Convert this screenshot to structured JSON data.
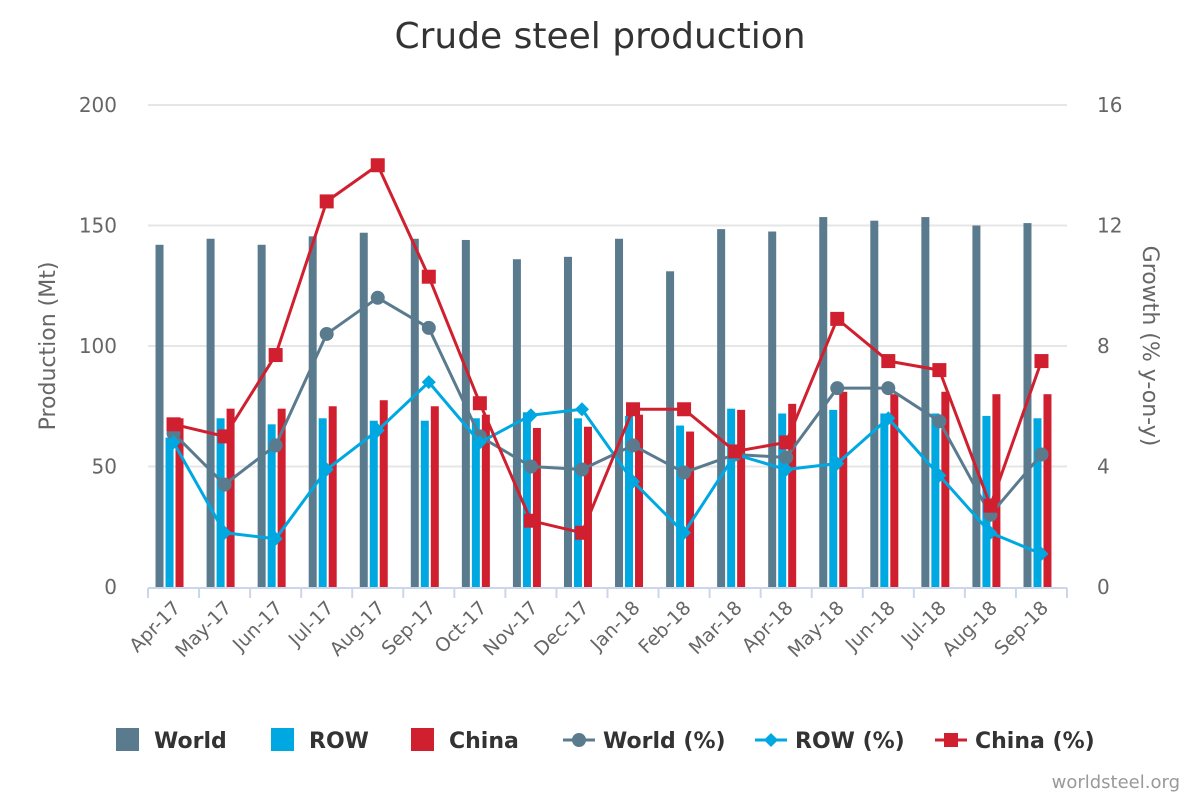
{
  "chart_data": {
    "type": "bar",
    "title": "Crude steel production",
    "ylabel": "Production (Mt)",
    "y2label": "Growth (% y-on-y)",
    "ylim": [
      0,
      200
    ],
    "y2lim": [
      0,
      16
    ],
    "yticks": [
      "0",
      "50",
      "100",
      "150",
      "200"
    ],
    "y2ticks": [
      "0",
      "4",
      "8",
      "12",
      "16"
    ],
    "categories": [
      "Apr-17",
      "May-17",
      "Jun-17",
      "Jul-17",
      "Aug-17",
      "Sep-17",
      "Oct-17",
      "Nov-17",
      "Dec-17",
      "Jan-18",
      "Feb-18",
      "Mar-18",
      "Apr-18",
      "May-18",
      "Jun-18",
      "Jul-18",
      "Aug-18",
      "Sep-18"
    ],
    "series": [
      {
        "name": "World",
        "kind": "bar",
        "axis": "left",
        "color": "#5a7b8e",
        "values": [
          142,
          144.5,
          142,
          145.5,
          147,
          144.5,
          144,
          136,
          137,
          144.5,
          131,
          148.5,
          147.5,
          153.5,
          152,
          153.5,
          150,
          151
        ]
      },
      {
        "name": "ROW",
        "kind": "bar",
        "axis": "left",
        "color": "#00a8e2",
        "values": [
          62,
          70,
          67.5,
          70,
          69,
          69,
          70,
          72.5,
          70,
          71,
          67,
          74,
          72,
          73.5,
          72,
          72,
          71,
          70
        ]
      },
      {
        "name": "China",
        "kind": "bar",
        "axis": "left",
        "color": "#d0202f",
        "values": [
          70,
          74,
          74,
          75,
          77.5,
          75,
          71.5,
          66,
          66.5,
          71.5,
          64.5,
          73.5,
          76,
          81,
          80,
          81,
          80,
          80
        ]
      },
      {
        "name": "World (%)",
        "kind": "line",
        "marker": "circle",
        "axis": "right",
        "color": "#5a7b8e",
        "values": [
          5.1,
          3.4,
          4.7,
          8.4,
          9.6,
          8.6,
          5.0,
          4.0,
          3.9,
          4.7,
          3.8,
          4.4,
          4.3,
          6.6,
          6.6,
          5.5,
          2.4,
          4.4
        ]
      },
      {
        "name": "ROW (%)",
        "kind": "line",
        "marker": "diamond",
        "axis": "right",
        "color": "#00a8e2",
        "values": [
          4.8,
          1.8,
          1.6,
          3.9,
          5.2,
          6.8,
          4.8,
          5.7,
          5.9,
          3.5,
          1.8,
          4.4,
          3.9,
          4.1,
          5.6,
          3.7,
          1.8,
          1.1
        ]
      },
      {
        "name": "China (%)",
        "kind": "line",
        "marker": "square",
        "axis": "right",
        "color": "#d0202f",
        "values": [
          5.4,
          5.0,
          7.7,
          12.8,
          14.0,
          10.3,
          6.1,
          2.2,
          1.8,
          5.9,
          5.9,
          4.5,
          4.8,
          8.9,
          7.5,
          7.2,
          2.7,
          7.5
        ]
      }
    ],
    "legend_position": "bottom",
    "grid": true,
    "credit": "worldsteel.org"
  }
}
